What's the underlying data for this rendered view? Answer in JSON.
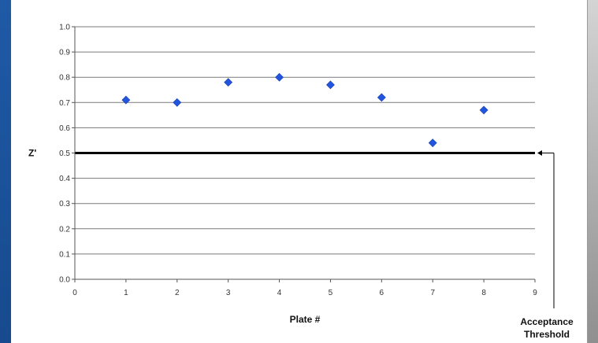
{
  "chart_data": {
    "type": "scatter",
    "xlabel": "Plate #",
    "ylabel": "Z'",
    "xlim": [
      0,
      9
    ],
    "ylim": [
      0,
      1.0
    ],
    "xticks": [
      "0",
      "1",
      "2",
      "3",
      "4",
      "5",
      "6",
      "7",
      "8",
      "9"
    ],
    "yticks": [
      "0.0",
      "0.1",
      "0.2",
      "0.3",
      "0.4",
      "0.5",
      "0.6",
      "0.7",
      "0.8",
      "0.9",
      "1.0"
    ],
    "grid": "horizontal",
    "marker_color": "#2255dd",
    "series": [
      {
        "x": [
          1,
          2,
          3,
          4,
          5,
          6,
          7,
          8
        ],
        "y": [
          0.71,
          0.7,
          0.78,
          0.8,
          0.77,
          0.72,
          0.54,
          0.67
        ]
      }
    ],
    "threshold": {
      "y": 0.5,
      "label_line1": "Acceptance",
      "label_line2": "Threshold"
    }
  }
}
